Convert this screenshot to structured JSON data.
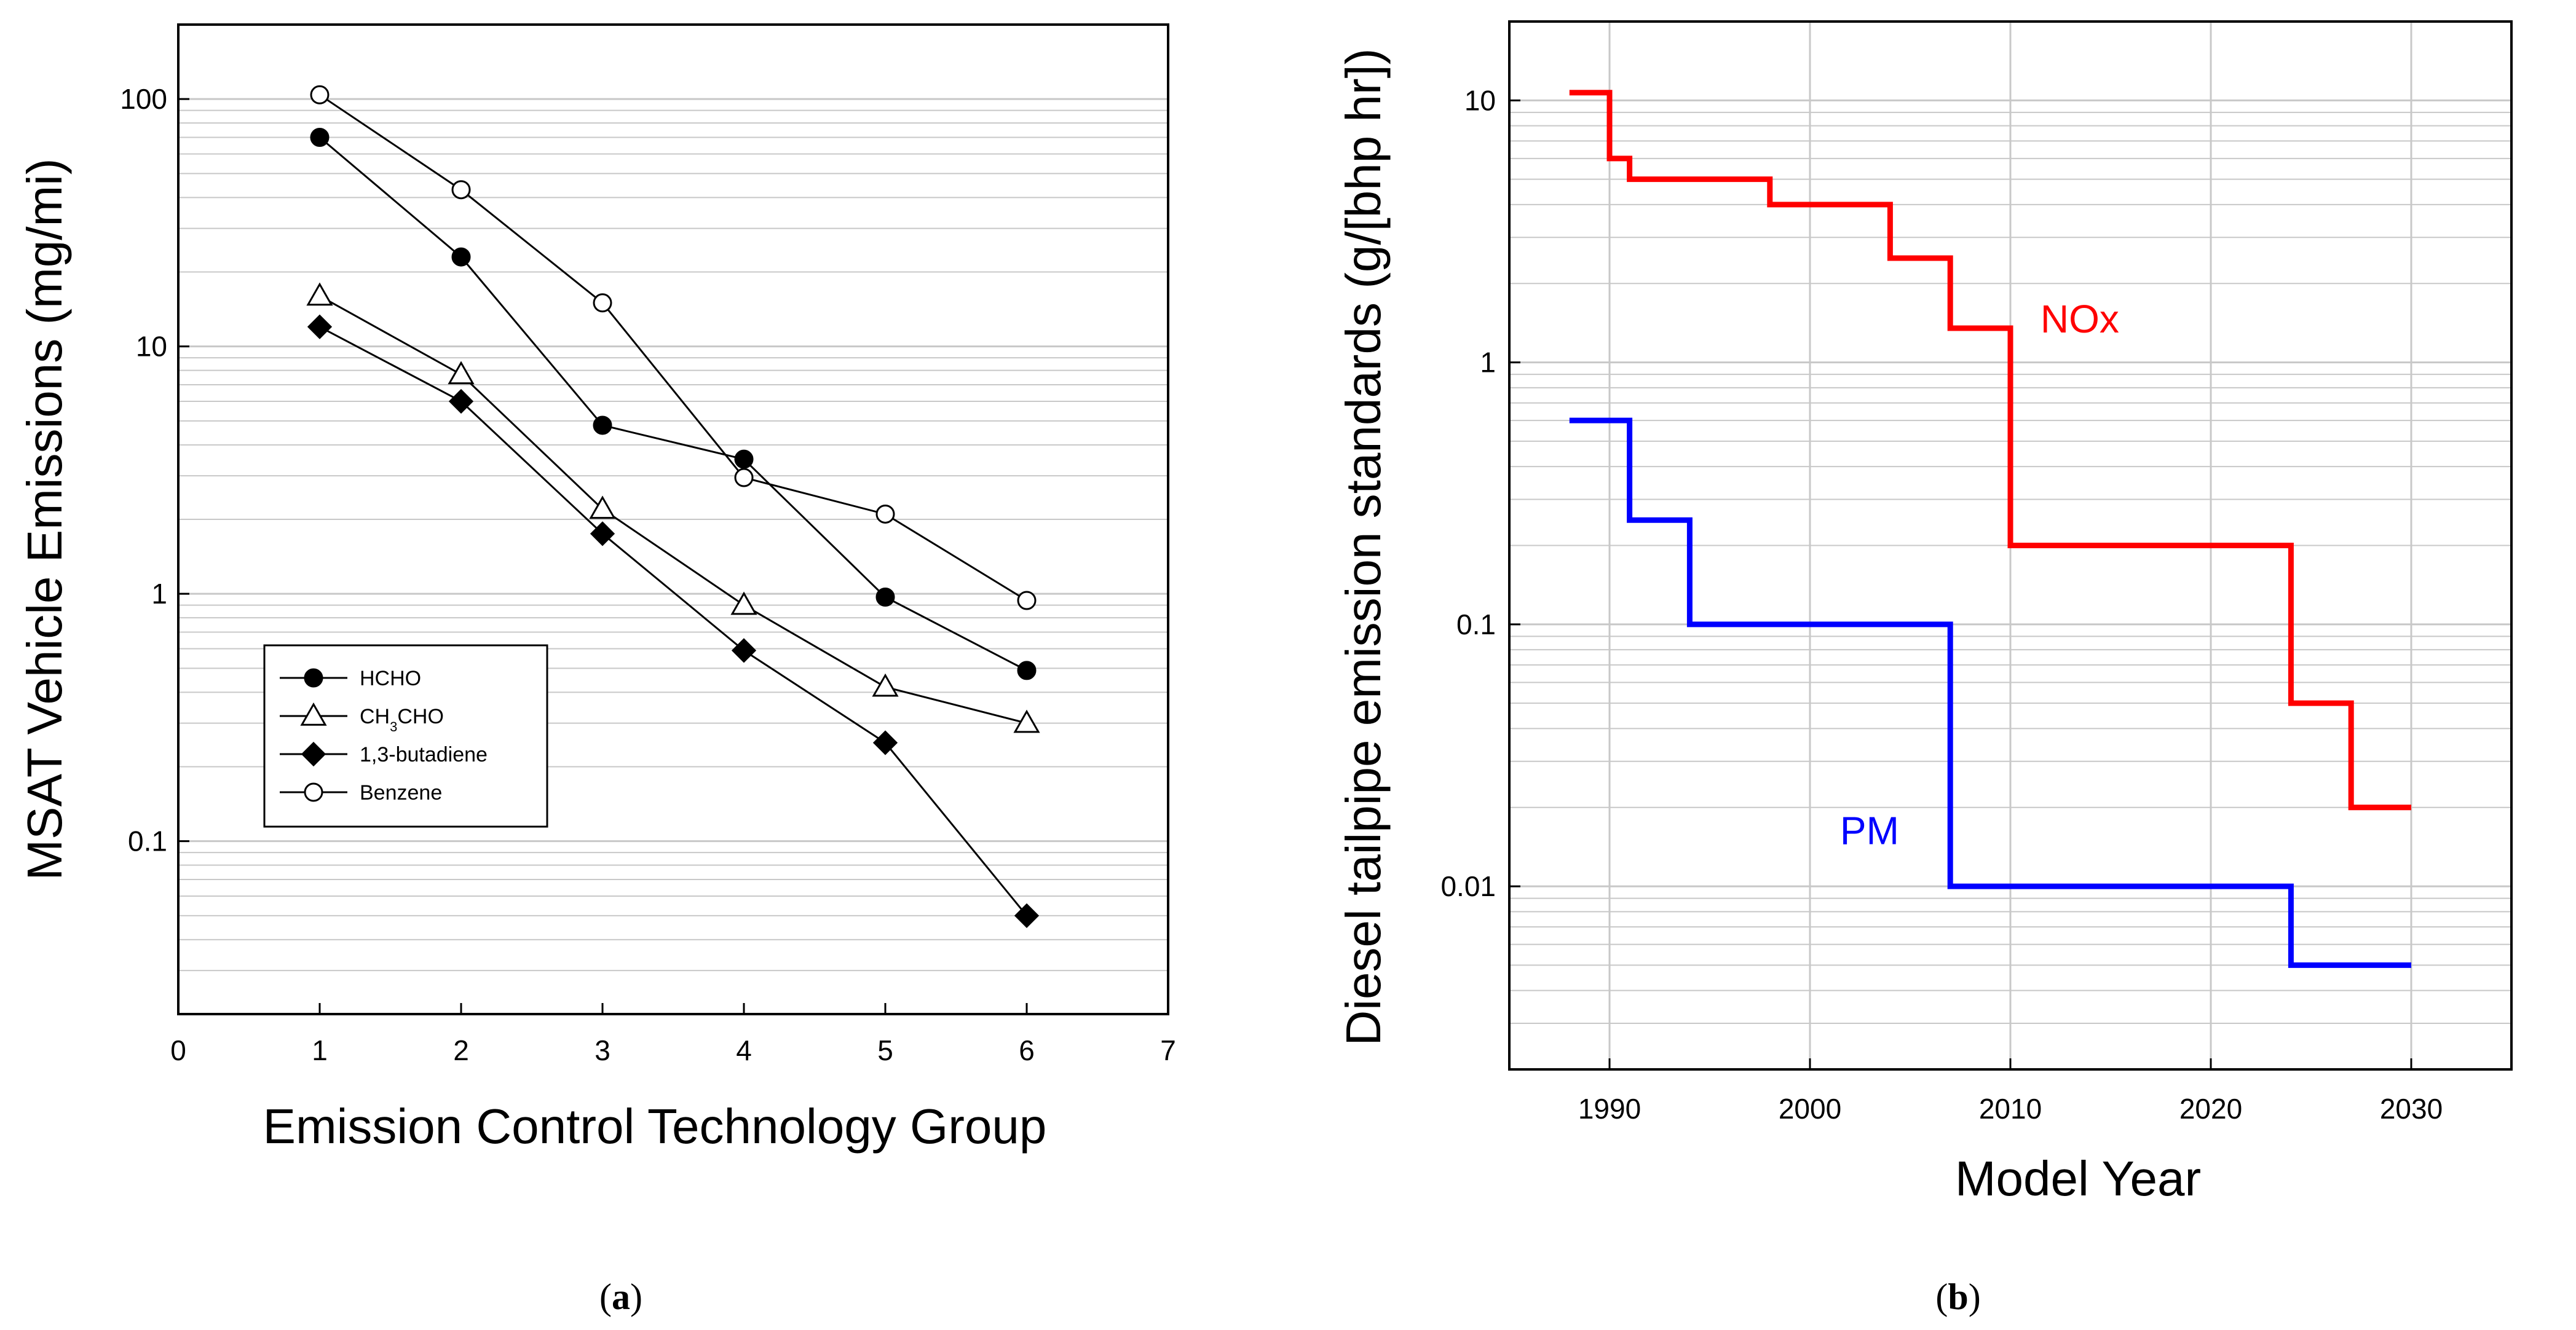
{
  "chart_data": [
    {
      "type": "line",
      "panel_label": "a",
      "xlabel": "Emission Control Technology Group",
      "ylabel": "MSAT Vehicle Emissions (mg/mi)",
      "xlim": [
        0,
        7
      ],
      "ylim": [
        0.02,
        200
      ],
      "yscale": "log",
      "grid": true,
      "x_ticks": [
        "0",
        "1",
        "2",
        "3",
        "4",
        "5",
        "6",
        "7"
      ],
      "y_ticks": [
        "0.1",
        "1",
        "10",
        "100"
      ],
      "legend_position": "lower-left",
      "x": [
        1,
        2,
        3,
        4,
        5,
        6
      ],
      "series": [
        {
          "name": "HCHO",
          "legend_main": "HCHO",
          "legend_sub": "",
          "legend_tail": "",
          "marker": "circle-filled",
          "values": [
            70,
            23,
            4.8,
            3.5,
            0.97,
            0.49
          ]
        },
        {
          "name": "CH3CHO",
          "legend_main": "CH",
          "legend_sub": "3",
          "legend_tail": "CHO",
          "marker": "triangle-open",
          "values": [
            16,
            7.7,
            2.2,
            0.9,
            0.42,
            0.3
          ]
        },
        {
          "name": "1,3-butadiene",
          "legend_main": "1,3-butadiene",
          "legend_sub": "",
          "legend_tail": "",
          "marker": "diamond-filled",
          "values": [
            12,
            6,
            1.75,
            0.59,
            0.25,
            0.05
          ]
        },
        {
          "name": "Benzene",
          "legend_main": "Benzene",
          "legend_sub": "",
          "legend_tail": "",
          "marker": "circle-open",
          "values": [
            104,
            43,
            15,
            2.95,
            2.1,
            0.94
          ]
        }
      ]
    },
    {
      "type": "line",
      "step": true,
      "panel_label": "b",
      "xlabel": "Model Year",
      "ylabel": "Diesel tailpipe emission standards (g/[bhp hr])",
      "xlim": [
        1985,
        2035
      ],
      "ylim": [
        0.002,
        20
      ],
      "yscale": "log",
      "grid": true,
      "x_ticks": [
        "1990",
        "2000",
        "2010",
        "2020",
        "2030"
      ],
      "y_ticks": [
        "0.01",
        "0.1",
        "1",
        "10"
      ],
      "series": [
        {
          "name": "NOx",
          "label": "NOx",
          "color": "#ff0000",
          "label_at": [
            2011.5,
            1.3
          ],
          "x": [
            1988,
            1990,
            1990,
            1990.8,
            1990.8,
            1991,
            1991,
            1998,
            1998,
            2004,
            2004,
            2007,
            2007,
            2010,
            2010,
            2024,
            2024,
            2027,
            2027,
            2030
          ],
          "values": [
            10.7,
            10.7,
            6,
            6,
            6,
            6,
            5,
            5,
            4,
            4,
            2.5,
            2.5,
            1.35,
            1.35,
            0.2,
            0.2,
            0.05,
            0.05,
            0.02,
            0.02
          ]
        },
        {
          "name": "PM",
          "label": "PM",
          "color": "#0000ff",
          "label_at": [
            2001.5,
            0.0145
          ],
          "x": [
            1988,
            1991,
            1991,
            1994,
            1994,
            2007,
            2007,
            2024,
            2024,
            2030
          ],
          "values": [
            0.6,
            0.6,
            0.25,
            0.25,
            0.1,
            0.1,
            0.01,
            0.01,
            0.005,
            0.005
          ]
        }
      ]
    }
  ]
}
